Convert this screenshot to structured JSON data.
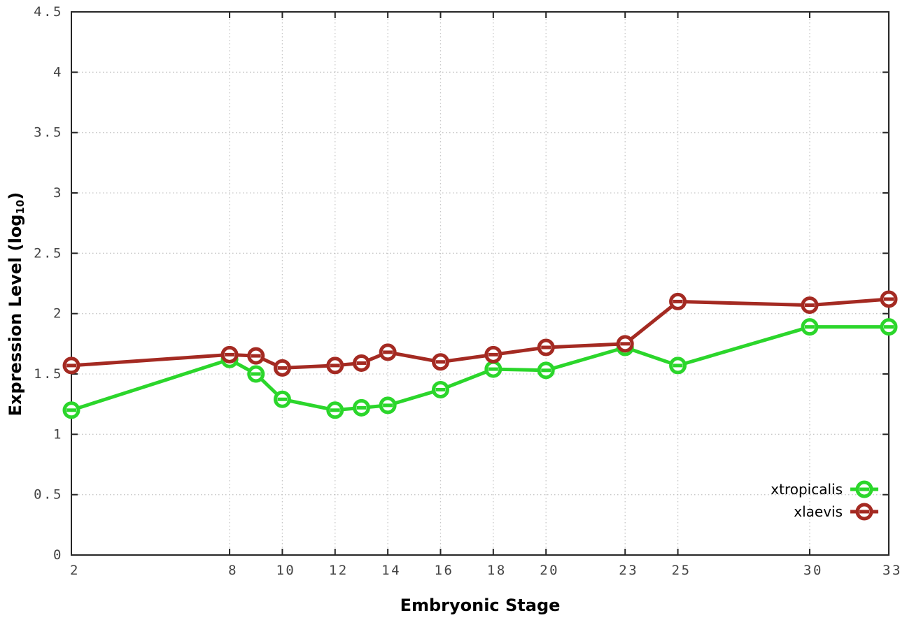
{
  "chart_data": {
    "type": "line",
    "title": "",
    "xlabel": "Embryonic Stage",
    "ylabel": "Expression Level (log10)",
    "ylabel_parts": {
      "main": "Expression Level (log",
      "sub": "10",
      "end": ")"
    },
    "x": [
      2,
      8,
      9,
      10,
      12,
      13,
      14,
      16,
      18,
      20,
      23,
      25,
      30,
      33
    ],
    "series": [
      {
        "name": "xtropicalis",
        "color": "#2bd62b",
        "values": [
          1.2,
          1.62,
          1.5,
          1.29,
          1.2,
          1.22,
          1.24,
          1.37,
          1.54,
          1.53,
          1.72,
          1.57,
          1.89,
          1.89
        ]
      },
      {
        "name": "xlaevis",
        "color": "#a42a22",
        "values": [
          1.57,
          1.66,
          1.65,
          1.55,
          1.57,
          1.59,
          1.68,
          1.6,
          1.66,
          1.72,
          1.75,
          2.1,
          2.07,
          2.12
        ]
      }
    ],
    "xlim": [
      2,
      33
    ],
    "ylim": [
      0,
      4.5
    ],
    "xticks": {
      "values": [
        2,
        8,
        10,
        12,
        14,
        16,
        18,
        20,
        23,
        25,
        30,
        33
      ],
      "labels": [
        "2",
        "8",
        "10",
        "12",
        "14",
        "16",
        "18",
        "20",
        "23",
        "25",
        "30",
        "33"
      ]
    },
    "yticks": {
      "values": [
        0,
        0.5,
        1,
        1.5,
        2,
        2.5,
        3,
        3.5,
        4,
        4.5
      ],
      "labels": [
        "0",
        "0.5",
        "1",
        "1.5",
        "2",
        "2.5",
        "3",
        "3.5",
        "4",
        "4.5"
      ]
    },
    "grid": "dotted major both axes",
    "legend_position": "inside bottom-right",
    "marker": "open-circle-with-line"
  },
  "colors": {
    "background": "#ffffff",
    "axis": "#262626",
    "grid": "#c6c6c6",
    "tick_label": "#444444"
  }
}
